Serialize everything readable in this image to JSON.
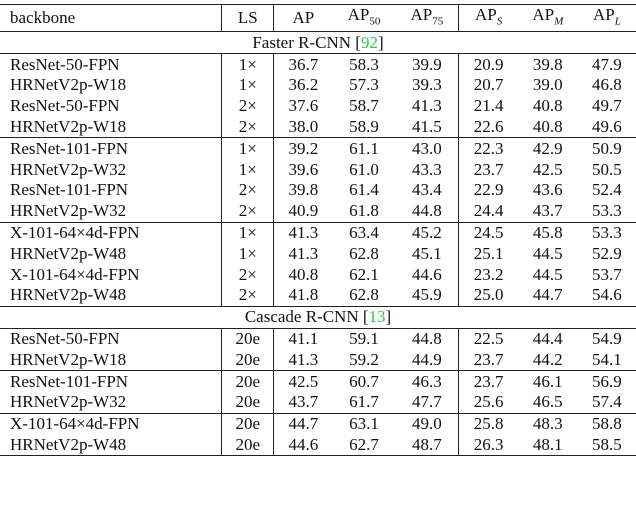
{
  "header": [
    {
      "text": "backbone"
    },
    {
      "text": "LS"
    },
    {
      "text": "AP"
    },
    {
      "text": "AP",
      "sub": "50"
    },
    {
      "text": "AP",
      "sub": "75"
    },
    {
      "text": "AP",
      "sub": "S"
    },
    {
      "text": "AP",
      "sub": "M"
    },
    {
      "text": "AP",
      "sub": "L"
    }
  ],
  "sections": [
    {
      "title": "Faster R-CNN",
      "cite": "92",
      "groups": [
        [
          [
            "ResNet-50-FPN",
            "1×",
            "36.7",
            "58.3",
            "39.9",
            "20.9",
            "39.8",
            "47.9"
          ],
          [
            "HRNetV2p-W18",
            "1×",
            "36.2",
            "57.3",
            "39.3",
            "20.7",
            "39.0",
            "46.8"
          ],
          [
            "ResNet-50-FPN",
            "2×",
            "37.6",
            "58.7",
            "41.3",
            "21.4",
            "40.8",
            "49.7"
          ],
          [
            "HRNetV2p-W18",
            "2×",
            "38.0",
            "58.9",
            "41.5",
            "22.6",
            "40.8",
            "49.6"
          ]
        ],
        [
          [
            "ResNet-101-FPN",
            "1×",
            "39.2",
            "61.1",
            "43.0",
            "22.3",
            "42.9",
            "50.9"
          ],
          [
            "HRNetV2p-W32",
            "1×",
            "39.6",
            "61.0",
            "43.3",
            "23.7",
            "42.5",
            "50.5"
          ],
          [
            "ResNet-101-FPN",
            "2×",
            "39.8",
            "61.4",
            "43.4",
            "22.9",
            "43.6",
            "52.4"
          ],
          [
            "HRNetV2p-W32",
            "2×",
            "40.9",
            "61.8",
            "44.8",
            "24.4",
            "43.7",
            "53.3"
          ]
        ],
        [
          [
            "X-101-64×4d-FPN",
            "1×",
            "41.3",
            "63.4",
            "45.2",
            "24.5",
            "45.8",
            "53.3"
          ],
          [
            "HRNetV2p-W48",
            "1×",
            "41.3",
            "62.8",
            "45.1",
            "25.1",
            "44.5",
            "52.9"
          ],
          [
            "X-101-64×4d-FPN",
            "2×",
            "40.8",
            "62.1",
            "44.6",
            "23.2",
            "44.5",
            "53.7"
          ],
          [
            "HRNetV2p-W48",
            "2×",
            "41.8",
            "62.8",
            "45.9",
            "25.0",
            "44.7",
            "54.6"
          ]
        ]
      ]
    },
    {
      "title": "Cascade R-CNN",
      "cite": "13",
      "groups": [
        [
          [
            "ResNet-50-FPN",
            "20e",
            "41.1",
            "59.1",
            "44.8",
            "22.5",
            "44.4",
            "54.9"
          ],
          [
            "HRNetV2p-W18",
            "20e",
            "41.3",
            "59.2",
            "44.9",
            "23.7",
            "44.2",
            "54.1"
          ]
        ],
        [
          [
            "ResNet-101-FPN",
            "20e",
            "42.5",
            "60.7",
            "46.3",
            "23.7",
            "46.1",
            "56.9"
          ],
          [
            "HRNetV2p-W32",
            "20e",
            "43.7",
            "61.7",
            "47.7",
            "25.6",
            "46.5",
            "57.4"
          ]
        ],
        [
          [
            "X-101-64×4d-FPN",
            "20e",
            "44.7",
            "63.1",
            "49.0",
            "25.8",
            "48.3",
            "58.8"
          ],
          [
            "HRNetV2p-W48",
            "20e",
            "44.6",
            "62.7",
            "48.7",
            "26.3",
            "48.1",
            "58.5"
          ]
        ]
      ]
    }
  ]
}
